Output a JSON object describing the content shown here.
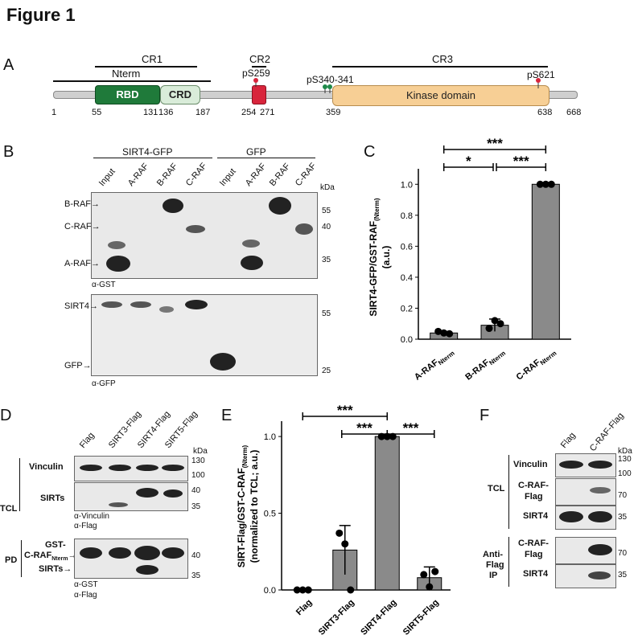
{
  "figure_title": "Figure 1",
  "panels": {
    "A": "A",
    "B": "B",
    "C": "C",
    "D": "D",
    "E": "E",
    "F": "F"
  },
  "domain_map": {
    "cr1": "CR1",
    "cr2": "CR2",
    "cr3": "CR3",
    "nterm": "Nterm",
    "rbd": "RBD",
    "crd": "CRD",
    "kinase": "Kinase domain",
    "ps259": "pS259",
    "ps340": "pS340-341",
    "ps621": "pS621",
    "positions": {
      "p1": "1",
      "p55": "55",
      "p131": "131",
      "p136": "136",
      "p187": "187",
      "p254": "254",
      "p271": "271",
      "p359": "359",
      "p638": "638",
      "p668": "668"
    }
  },
  "panel_b": {
    "group1": "SIRT4-GFP",
    "group2": "GFP",
    "lanes": [
      "Input",
      "A-RAF",
      "B-RAF",
      "C-RAF",
      "Input",
      "A-RAF",
      "B-RAF",
      "C-RAF"
    ],
    "kda": "kDa",
    "top_markers": [
      "B-RAF→",
      "C-RAF→",
      "A-RAF→"
    ],
    "top_kda": [
      "55",
      "40",
      "35"
    ],
    "top_ab": "α-GST",
    "bottom_markers": [
      "SIRT4→",
      "GFP→"
    ],
    "bottom_kda": [
      "55",
      "25"
    ],
    "bottom_ab": "α-GFP"
  },
  "chart_c": {
    "chart_data": {
      "type": "bar",
      "categories": [
        "A-RAF Nterm",
        "B-RAF Nterm",
        "C-RAF Nterm"
      ],
      "cat_main": [
        "A-RAF",
        "B-RAF",
        "C-RAF"
      ],
      "cat_sub": [
        "Nterm",
        "Nterm",
        "Nterm"
      ],
      "values": [
        0.04,
        0.09,
        1.0
      ],
      "errors": [
        0.01,
        0.04,
        0.0
      ],
      "points": [
        [
          0.05,
          0.04,
          0.035
        ],
        [
          0.07,
          0.12,
          0.1
        ],
        [
          1.0,
          1.0,
          1.0
        ]
      ],
      "ylabel_main": "SIRT4-GFP/GST-RAF",
      "ylabel_sub": "(Nterm)",
      "ylabel_unit": "(a.u.)",
      "ylim": [
        0,
        1.1
      ],
      "yticks": [
        "0.0",
        "0.2",
        "0.4",
        "0.6",
        "0.8",
        "1.0"
      ],
      "ytick_values": [
        0,
        0.2,
        0.4,
        0.6,
        0.8,
        1.0
      ],
      "significance": [
        {
          "from": 0,
          "to": 2,
          "label": "***"
        },
        {
          "from": 0,
          "to": 1,
          "label": "*"
        },
        {
          "from": 1,
          "to": 2,
          "label": "***"
        }
      ]
    }
  },
  "panel_d": {
    "lanes": [
      "Flag",
      "SIRT3-Flag",
      "SIRT4-Flag",
      "SIRT5-Flag"
    ],
    "kda": "kDa",
    "tcl": "TCL",
    "pd": "PD",
    "vinculin": "Vinculin",
    "sirts": "SIRTs",
    "gst_label_1": "GST-",
    "gst_label_2": "C-RAF",
    "gst_label_sub": "Nterm",
    "pd_sirts": "SIRTs",
    "kda_vals": [
      "130",
      "100",
      "40",
      "35",
      "40",
      "35"
    ],
    "ab1": "α-Vinculin",
    "ab2": "α-Flag",
    "ab3": "α-GST",
    "ab4": "α-Flag"
  },
  "chart_e": {
    "chart_data": {
      "type": "bar",
      "categories": [
        "Flag",
        "SIRT3-Flag",
        "SIRT4-Flag",
        "SIRT5-Flag"
      ],
      "values": [
        0.0,
        0.26,
        1.0,
        0.08
      ],
      "errors": [
        0.0,
        0.16,
        0.0,
        0.07
      ],
      "points": [
        [
          0,
          0,
          0
        ],
        [
          0.37,
          0.3,
          0.0
        ],
        [
          1.0,
          1.0,
          1.0
        ],
        [
          0.1,
          0.02,
          0.12
        ]
      ],
      "ylabel_1": "SIRT-Flag/GST-C-RAF",
      "ylabel_sub": "(Nterm)",
      "ylabel_2": "(normalized to TCL; a.u.)",
      "ylim": [
        0,
        1.1
      ],
      "yticks": [
        "0.0",
        "0.5",
        "1.0"
      ],
      "ytick_values": [
        0,
        0.5,
        1.0
      ],
      "significance": [
        {
          "from": 0,
          "to": 2,
          "label": "***"
        },
        {
          "from": 1,
          "to": 2,
          "label": "***"
        },
        {
          "from": 2,
          "to": 3,
          "label": "***"
        }
      ]
    }
  },
  "panel_f": {
    "lanes": [
      "Flag",
      "C-RAF-Flag"
    ],
    "kda": "kDa",
    "tcl": "TCL",
    "ip_1": "Anti-",
    "ip_2": "Flag",
    "ip_3": "IP",
    "vinculin": "Vinculin",
    "craf_1": "C-RAF-",
    "craf_2": "Flag",
    "sirt4": "SIRT4",
    "kda_vals": [
      "130",
      "100",
      "70",
      "35",
      "70",
      "35"
    ]
  }
}
